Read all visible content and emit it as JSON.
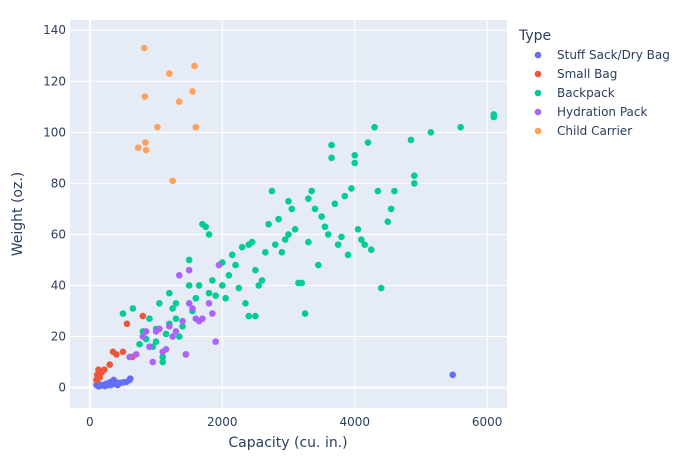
{
  "chart_data": {
    "type": "scatter",
    "title": "",
    "xlabel": "Capacity (cu. in.)",
    "ylabel": "Weight (oz.)",
    "xlim": [
      -300,
      6300
    ],
    "ylim": [
      -8,
      144
    ],
    "xticks": [
      0,
      2000,
      4000,
      6000
    ],
    "xtick_labels": [
      "0",
      "2000",
      "4000",
      "6000"
    ],
    "yticks": [
      0,
      20,
      40,
      60,
      80,
      100,
      120,
      140
    ],
    "ytick_labels": [
      "0",
      "20",
      "40",
      "60",
      "80",
      "100",
      "120",
      "140"
    ],
    "grid": true,
    "legend_title": "Type",
    "legend_position": "right",
    "series": [
      {
        "name": "Stuff Sack/Dry Bag",
        "color": "#636efa",
        "points": [
          [
            100,
            1
          ],
          [
            130,
            0.5
          ],
          [
            150,
            1.2
          ],
          [
            170,
            0.8
          ],
          [
            200,
            1
          ],
          [
            230,
            0.6
          ],
          [
            250,
            1.5
          ],
          [
            280,
            1
          ],
          [
            300,
            2
          ],
          [
            320,
            1
          ],
          [
            340,
            2.5
          ],
          [
            360,
            3
          ],
          [
            380,
            1.5
          ],
          [
            400,
            2
          ],
          [
            420,
            1
          ],
          [
            450,
            1.8
          ],
          [
            500,
            2
          ],
          [
            550,
            2.2
          ],
          [
            600,
            3
          ],
          [
            610,
            3.5
          ],
          [
            5480,
            5
          ]
        ]
      },
      {
        "name": "Small Bag",
        "color": "#ef553b",
        "points": [
          [
            100,
            3
          ],
          [
            110,
            5
          ],
          [
            120,
            4
          ],
          [
            130,
            7
          ],
          [
            150,
            4
          ],
          [
            180,
            6
          ],
          [
            220,
            7
          ],
          [
            300,
            9
          ],
          [
            350,
            14
          ],
          [
            400,
            13
          ],
          [
            500,
            14
          ],
          [
            560,
            25
          ],
          [
            640,
            12
          ],
          [
            800,
            28
          ]
        ]
      },
      {
        "name": "Backpack",
        "color": "#00cc96",
        "points": [
          [
            500,
            29
          ],
          [
            650,
            31
          ],
          [
            750,
            17
          ],
          [
            800,
            22
          ],
          [
            850,
            19
          ],
          [
            900,
            27
          ],
          [
            950,
            16
          ],
          [
            1000,
            18
          ],
          [
            1000,
            23
          ],
          [
            1050,
            33
          ],
          [
            1100,
            12
          ],
          [
            1100,
            10
          ],
          [
            1150,
            21
          ],
          [
            1200,
            25
          ],
          [
            1200,
            37
          ],
          [
            1250,
            31
          ],
          [
            1300,
            33
          ],
          [
            1300,
            27
          ],
          [
            1350,
            20
          ],
          [
            1400,
            24
          ],
          [
            1450,
            13
          ],
          [
            1500,
            50
          ],
          [
            1500,
            40
          ],
          [
            1550,
            30
          ],
          [
            1600,
            35
          ],
          [
            1650,
            40
          ],
          [
            1700,
            64
          ],
          [
            1750,
            63
          ],
          [
            1800,
            60
          ],
          [
            1800,
            37
          ],
          [
            1850,
            42
          ],
          [
            1900,
            36
          ],
          [
            2000,
            49
          ],
          [
            2000,
            40
          ],
          [
            2050,
            35
          ],
          [
            2100,
            44
          ],
          [
            2150,
            52
          ],
          [
            2200,
            48
          ],
          [
            2250,
            39
          ],
          [
            2300,
            55
          ],
          [
            2350,
            33
          ],
          [
            2400,
            28
          ],
          [
            2400,
            56
          ],
          [
            2450,
            57
          ],
          [
            2500,
            28
          ],
          [
            2500,
            46
          ],
          [
            2550,
            40
          ],
          [
            2600,
            42
          ],
          [
            2650,
            53
          ],
          [
            2700,
            64
          ],
          [
            2750,
            77
          ],
          [
            2800,
            56
          ],
          [
            2850,
            66
          ],
          [
            2900,
            53
          ],
          [
            2950,
            58
          ],
          [
            3000,
            73
          ],
          [
            3000,
            60
          ],
          [
            3050,
            70
          ],
          [
            3100,
            62
          ],
          [
            3150,
            41
          ],
          [
            3200,
            41
          ],
          [
            3250,
            29
          ],
          [
            3300,
            74
          ],
          [
            3300,
            57
          ],
          [
            3350,
            77
          ],
          [
            3400,
            70
          ],
          [
            3450,
            48
          ],
          [
            3500,
            67
          ],
          [
            3550,
            63
          ],
          [
            3600,
            60
          ],
          [
            3650,
            95
          ],
          [
            3650,
            90
          ],
          [
            3700,
            72
          ],
          [
            3750,
            56
          ],
          [
            3800,
            59
          ],
          [
            3850,
            75
          ],
          [
            3900,
            52
          ],
          [
            3950,
            78
          ],
          [
            4000,
            91
          ],
          [
            4000,
            88
          ],
          [
            4050,
            62
          ],
          [
            4100,
            58
          ],
          [
            4150,
            56
          ],
          [
            4200,
            96
          ],
          [
            4250,
            54
          ],
          [
            4300,
            102
          ],
          [
            4350,
            77
          ],
          [
            4400,
            39
          ],
          [
            4500,
            65
          ],
          [
            4550,
            70
          ],
          [
            4600,
            77
          ],
          [
            4850,
            97
          ],
          [
            4900,
            83
          ],
          [
            4900,
            80
          ],
          [
            5150,
            100
          ],
          [
            5600,
            102
          ],
          [
            6100,
            107
          ],
          [
            6100,
            106
          ]
        ]
      },
      {
        "name": "Hydration Pack",
        "color": "#ab63fa",
        "points": [
          [
            600,
            12
          ],
          [
            700,
            13
          ],
          [
            800,
            20
          ],
          [
            850,
            22
          ],
          [
            900,
            16
          ],
          [
            950,
            10
          ],
          [
            1000,
            22
          ],
          [
            1050,
            23
          ],
          [
            1100,
            14
          ],
          [
            1150,
            15
          ],
          [
            1200,
            24
          ],
          [
            1250,
            20
          ],
          [
            1300,
            22
          ],
          [
            1350,
            44
          ],
          [
            1400,
            26
          ],
          [
            1450,
            13
          ],
          [
            1500,
            33
          ],
          [
            1500,
            46
          ],
          [
            1550,
            31
          ],
          [
            1600,
            27
          ],
          [
            1650,
            26
          ],
          [
            1700,
            27
          ],
          [
            1800,
            33
          ],
          [
            1850,
            29
          ],
          [
            1900,
            18
          ],
          [
            1950,
            48
          ]
        ]
      },
      {
        "name": "Child Carrier",
        "color": "#ffa15a",
        "points": [
          [
            730,
            94
          ],
          [
            820,
            133
          ],
          [
            830,
            114
          ],
          [
            840,
            96
          ],
          [
            850,
            93
          ],
          [
            1020,
            102
          ],
          [
            1200,
            123
          ],
          [
            1250,
            81
          ],
          [
            1350,
            112
          ],
          [
            1550,
            116
          ],
          [
            1580,
            126
          ],
          [
            1600,
            102
          ]
        ]
      }
    ]
  }
}
